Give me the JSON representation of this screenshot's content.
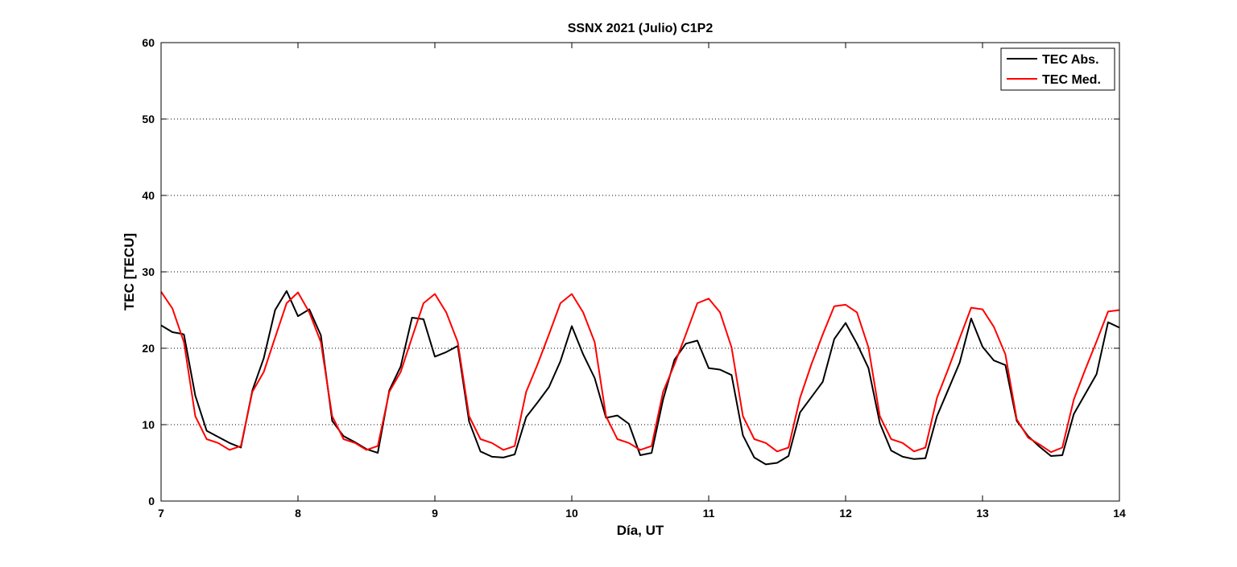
{
  "chart_data": {
    "type": "line",
    "title": "SSNX 2021 (Julio) C1P2",
    "xlabel": "Día, UT",
    "ylabel": "TEC [TECU]",
    "xlim": [
      7,
      14
    ],
    "ylim": [
      0,
      60
    ],
    "xticks": [
      "7",
      "8",
      "9",
      "10",
      "11",
      "12",
      "13",
      "14"
    ],
    "yticks": [
      "0",
      "10",
      "20",
      "30",
      "40",
      "50",
      "60"
    ],
    "grid": "horizontal dotted",
    "legend_position": "top-right",
    "series": [
      {
        "name": "TEC Abs.",
        "color": "#000000",
        "x": [
          7.0,
          7.083,
          7.15,
          7.167,
          7.25,
          7.333,
          7.417,
          7.5,
          7.583,
          7.667,
          7.75,
          7.833,
          7.917,
          8.0,
          8.083,
          8.167,
          8.25,
          8.333,
          8.417,
          8.5,
          8.583,
          8.667,
          8.75,
          8.833,
          8.917,
          9.0,
          9.083,
          9.167,
          9.25,
          9.333,
          9.417,
          9.5,
          9.583,
          9.667,
          9.75,
          9.833,
          9.917,
          10.0,
          10.083,
          10.167,
          10.25,
          10.333,
          10.417,
          10.5,
          10.583,
          10.667,
          10.75,
          10.833,
          10.917,
          11.0,
          11.083,
          11.167,
          11.25,
          11.333,
          11.417,
          11.5,
          11.583,
          11.667,
          11.75,
          11.833,
          11.917,
          12.0,
          12.083,
          12.167,
          12.25,
          12.333,
          12.417,
          12.5,
          12.583,
          12.667,
          12.75,
          12.833,
          12.917,
          13.0,
          13.083,
          13.167,
          13.25,
          13.333,
          13.417,
          13.5,
          13.583,
          13.667,
          13.75,
          13.833,
          13.917,
          14.0
        ],
        "y": [
          23.0,
          22.1,
          21.9,
          21.8,
          13.8,
          9.2,
          8.4,
          7.6,
          7.0,
          14.5,
          18.7,
          25.0,
          27.5,
          24.2,
          25.1,
          21.7,
          10.5,
          8.5,
          7.7,
          6.8,
          6.3,
          14.5,
          17.6,
          24.0,
          23.8,
          18.9,
          19.5,
          20.3,
          10.4,
          6.5,
          5.8,
          5.7,
          6.1,
          11.0,
          12.9,
          14.9,
          18.3,
          22.9,
          19.2,
          16.1,
          10.9,
          11.2,
          10.1,
          6.0,
          6.3,
          13.3,
          18.5,
          20.6,
          21.0,
          17.4,
          17.2,
          16.5,
          8.6,
          5.7,
          4.8,
          5.0,
          5.9,
          11.6,
          13.6,
          15.6,
          21.2,
          23.3,
          20.6,
          17.4,
          10.2,
          6.6,
          5.8,
          5.5,
          5.6,
          11.1,
          14.6,
          18.1,
          23.9,
          20.2,
          18.4,
          17.8,
          10.5,
          8.5,
          7.1,
          5.9,
          6.0,
          11.4,
          14.0,
          16.6,
          23.4,
          22.7
        ]
      },
      {
        "name": "TEC Med.",
        "color": "#ff0000",
        "x": [
          7.0,
          7.083,
          7.167,
          7.25,
          7.333,
          7.417,
          7.5,
          7.583,
          7.667,
          7.75,
          7.833,
          7.917,
          8.0,
          8.083,
          8.167,
          8.25,
          8.333,
          8.417,
          8.5,
          8.583,
          8.667,
          8.75,
          8.833,
          8.917,
          9.0,
          9.083,
          9.167,
          9.25,
          9.333,
          9.417,
          9.5,
          9.583,
          9.667,
          9.75,
          9.833,
          9.917,
          10.0,
          10.083,
          10.167,
          10.25,
          10.333,
          10.417,
          10.5,
          10.583,
          10.667,
          10.75,
          10.833,
          10.917,
          11.0,
          11.083,
          11.167,
          11.25,
          11.333,
          11.417,
          11.5,
          11.583,
          11.667,
          11.75,
          11.833,
          11.917,
          12.0,
          12.083,
          12.167,
          12.25,
          12.333,
          12.417,
          12.5,
          12.583,
          12.667,
          12.75,
          12.833,
          12.917,
          13.0,
          13.083,
          13.167,
          13.25,
          13.333,
          13.417,
          13.5,
          13.583,
          13.667,
          13.75,
          13.833,
          13.917,
          14.0
        ],
        "y": [
          27.4,
          25.2,
          20.8,
          11.1,
          8.1,
          7.6,
          6.7,
          7.2,
          14.3,
          16.9,
          21.4,
          25.9,
          27.3,
          24.7,
          20.8,
          11.1,
          8.1,
          7.6,
          6.7,
          7.2,
          14.3,
          16.9,
          21.4,
          25.9,
          27.1,
          24.7,
          20.8,
          11.1,
          8.1,
          7.6,
          6.7,
          7.2,
          14.3,
          17.9,
          21.8,
          25.9,
          27.1,
          24.7,
          20.8,
          11.1,
          8.1,
          7.6,
          6.7,
          7.2,
          14.3,
          17.9,
          21.8,
          25.9,
          26.5,
          24.7,
          20.1,
          11.1,
          8.1,
          7.6,
          6.5,
          7.0,
          13.5,
          17.9,
          21.8,
          25.5,
          25.7,
          24.7,
          20.1,
          11.1,
          8.1,
          7.6,
          6.5,
          7.0,
          13.5,
          17.3,
          21.3,
          25.3,
          25.1,
          22.8,
          19.2,
          10.7,
          8.3,
          7.4,
          6.4,
          7.0,
          13.3,
          17.2,
          20.9,
          24.8,
          25.0
        ]
      }
    ]
  }
}
